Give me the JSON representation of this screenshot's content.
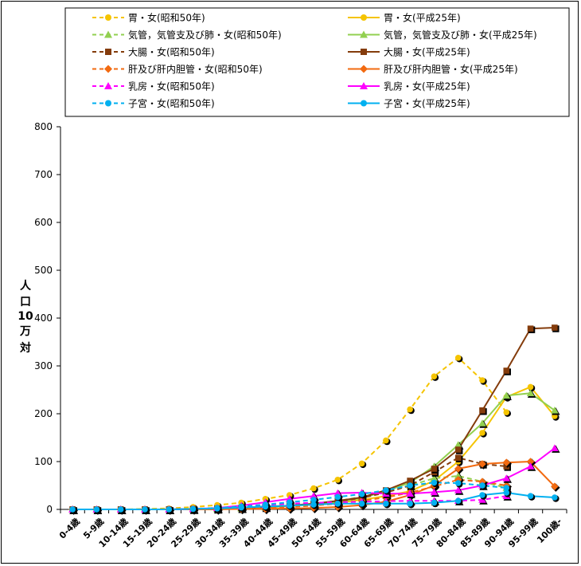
{
  "chart_data": {
    "type": "line",
    "title": "",
    "xlabel": "",
    "ylabel": "人口10万対",
    "ylabel_chars": [
      "人",
      "口",
      "10",
      "万",
      "対"
    ],
    "ylim": [
      0,
      800
    ],
    "yticks": [
      0,
      100,
      200,
      300,
      400,
      500,
      600,
      700,
      800
    ],
    "categories": [
      "0-4歳",
      "5-9歳",
      "10-14歳",
      "15-19歳",
      "20-24歳",
      "25-29歳",
      "30-34歳",
      "35-39歳",
      "40-44歳",
      "45-49歳",
      "50-54歳",
      "55-59歳",
      "60-64歳",
      "65-69歳",
      "70-74歳",
      "75-79歳",
      "80-84歳",
      "85-89歳",
      "90-94歳",
      "95-99歳",
      "100歳-"
    ],
    "legend_position": "top",
    "series": [
      {
        "name": "胃・女(昭和50年)",
        "color": "#f5c400",
        "dash": true,
        "marker": "circle",
        "values": [
          0,
          0,
          0,
          1,
          2,
          5,
          9,
          14,
          22,
          30,
          44,
          62,
          96,
          144,
          209,
          278,
          317,
          270,
          203,
          null,
          null
        ]
      },
      {
        "name": "胃・女(平成25年)",
        "color": "#f5c400",
        "dash": false,
        "marker": "circle",
        "values": [
          0,
          0,
          0,
          0,
          0,
          1,
          2,
          4,
          6,
          8,
          10,
          14,
          20,
          28,
          38,
          60,
          100,
          160,
          235,
          256,
          195
        ]
      },
      {
        "name": "気管，気管支及び肺・女(昭和50年)",
        "color": "#92d050",
        "dash": true,
        "marker": "triangle",
        "values": [
          0,
          0,
          0,
          0,
          0,
          1,
          1,
          3,
          5,
          8,
          12,
          18,
          26,
          36,
          50,
          65,
          70,
          58,
          45,
          null,
          null
        ]
      },
      {
        "name": "気管，気管支及び肺・女(平成25年)",
        "color": "#92d050",
        "dash": false,
        "marker": "triangle",
        "values": [
          0,
          0,
          0,
          0,
          0,
          0,
          1,
          2,
          4,
          7,
          10,
          16,
          24,
          38,
          56,
          90,
          135,
          180,
          238,
          243,
          207
        ]
      },
      {
        "name": "大腸・女(昭和50年)",
        "color": "#843c0c",
        "dash": true,
        "marker": "square",
        "values": [
          0,
          0,
          0,
          0,
          0,
          1,
          2,
          3,
          5,
          8,
          12,
          17,
          24,
          35,
          50,
          78,
          108,
          95,
          90,
          null,
          null
        ]
      },
      {
        "name": "大腸・女(平成25年)",
        "color": "#843c0c",
        "dash": false,
        "marker": "square",
        "values": [
          0,
          0,
          0,
          0,
          0,
          1,
          2,
          3,
          5,
          8,
          12,
          18,
          25,
          40,
          60,
          85,
          125,
          207,
          290,
          378,
          380
        ]
      },
      {
        "name": "肝及び肝内胆管・女(昭和50年)",
        "color": "#f26a10",
        "dash": true,
        "marker": "diamond",
        "values": [
          0,
          0,
          0,
          0,
          0,
          1,
          1,
          2,
          3,
          5,
          8,
          12,
          18,
          25,
          35,
          48,
          62,
          58,
          50,
          null,
          null
        ]
      },
      {
        "name": "肝及び肝内胆管・女(平成25年)",
        "color": "#f26a10",
        "dash": false,
        "marker": "diamond",
        "values": [
          0,
          0,
          0,
          0,
          0,
          0,
          0,
          1,
          1,
          2,
          3,
          5,
          9,
          16,
          30,
          50,
          85,
          95,
          98,
          100,
          48
        ]
      },
      {
        "name": "乳房・女(昭和50年)",
        "color": "#ff00ff",
        "dash": true,
        "marker": "triangle",
        "values": [
          0,
          0,
          0,
          0,
          0,
          1,
          3,
          6,
          9,
          12,
          14,
          15,
          16,
          17,
          18,
          18,
          18,
          20,
          28,
          null,
          null
        ]
      },
      {
        "name": "乳房・女(平成25年)",
        "color": "#ff00ff",
        "dash": false,
        "marker": "triangle",
        "values": [
          0,
          0,
          0,
          0,
          0,
          1,
          3,
          8,
          15,
          22,
          28,
          34,
          35,
          33,
          33,
          36,
          40,
          50,
          65,
          90,
          128
        ]
      },
      {
        "name": "子宮・女(昭和50年)",
        "color": "#00b0f0",
        "dash": true,
        "marker": "circle",
        "values": [
          0,
          0,
          0,
          0,
          0,
          1,
          3,
          6,
          10,
          15,
          20,
          26,
          32,
          40,
          50,
          56,
          55,
          50,
          45,
          null,
          null
        ]
      },
      {
        "name": "子宮・女(平成25年)",
        "color": "#00b0f0",
        "dash": false,
        "marker": "circle",
        "values": [
          0,
          0,
          0,
          0,
          0,
          1,
          2,
          4,
          6,
          8,
          10,
          12,
          12,
          12,
          12,
          14,
          18,
          30,
          35,
          28,
          25
        ]
      }
    ]
  }
}
